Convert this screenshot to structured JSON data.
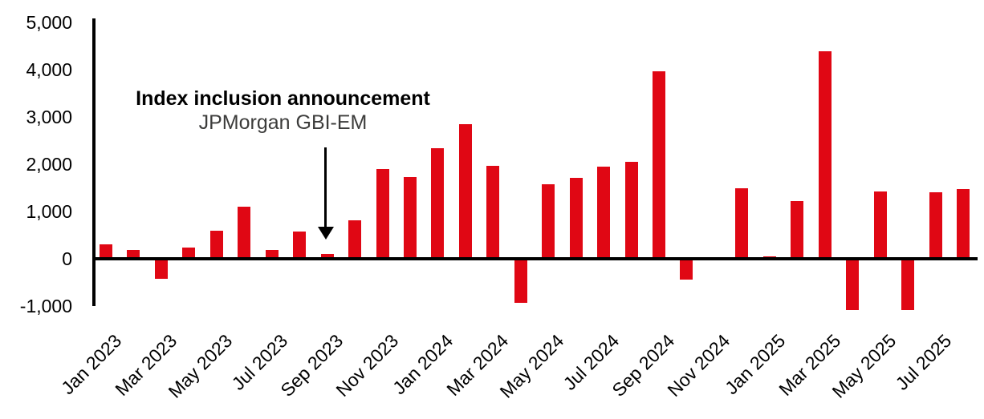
{
  "chart_data": {
    "type": "bar",
    "title": "",
    "xlabel": "",
    "ylabel": "",
    "ylim": [
      -1000,
      5000
    ],
    "grid": false,
    "bar_color": "#e00714",
    "axis_color": "#000000",
    "x": [
      "Jan 2023",
      "Feb 2023",
      "Mar 2023",
      "Apr 2023",
      "May 2023",
      "Jun 2023",
      "Jul 2023",
      "Aug 2023",
      "Sep 2023",
      "Oct 2023",
      "Nov 2023",
      "Dec 2023",
      "Jan 2024",
      "Feb 2024",
      "Mar 2024",
      "Apr 2024",
      "May 2024",
      "Jun 2024",
      "Jul 2024",
      "Aug 2024",
      "Sep 2024",
      "Oct 2024",
      "Nov 2024",
      "Dec 2024",
      "Jan 2025",
      "Feb 2025",
      "Mar 2025",
      "Apr 2025",
      "May 2025",
      "Jun 2025",
      "Jul 2025",
      "Aug 2025"
    ],
    "values": [
      300,
      175,
      -425,
      225,
      580,
      1090,
      185,
      565,
      100,
      810,
      1890,
      1725,
      2330,
      2840,
      1960,
      -940,
      1560,
      1695,
      1940,
      2050,
      3950,
      -450,
      0,
      1480,
      50,
      1220,
      4380,
      -1085,
      1420,
      -1085,
      1400,
      1460
    ],
    "x_tick_labels": [
      "Jan 2023",
      "Mar 2023",
      "May 2023",
      "Jul 2023",
      "Sep 2023",
      "Nov 2023",
      "Jan 2024",
      "Mar 2024",
      "May 2024",
      "Jul 2024",
      "Sep 2024",
      "Nov 2024",
      "Jan 2025",
      "Mar 2025",
      "May 2025",
      "Jul 2025"
    ],
    "y_ticks": [
      {
        "value": 5000,
        "label": "5,000"
      },
      {
        "value": 4000,
        "label": "4,000"
      },
      {
        "value": 3000,
        "label": "3,000"
      },
      {
        "value": 2000,
        "label": "2,000"
      },
      {
        "value": 1000,
        "label": "1,000"
      },
      {
        "value": 0,
        "label": "0"
      },
      {
        "value": -1000,
        "label": "-1,000"
      }
    ],
    "annotation": {
      "title": "Index inclusion announcement",
      "subtitle": "JPMorgan GBI-EM",
      "arrow_points_to": "Sep 2023"
    }
  }
}
